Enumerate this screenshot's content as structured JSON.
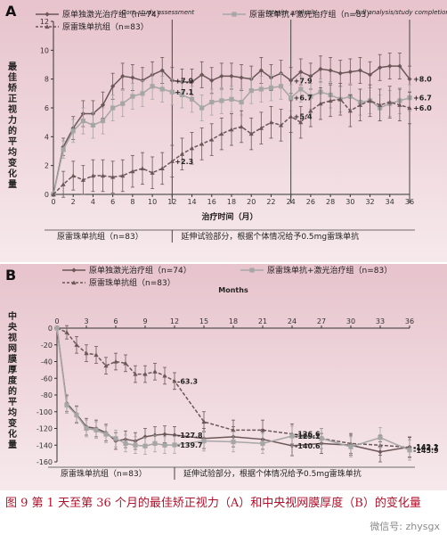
{
  "colors": {
    "background_top": "#e7c3cc",
    "background_bottom": "#f6e9ec",
    "series_laser": "#6b5757",
    "series_ranib_laser": "#a6a6a6",
    "series_ranib": "#6b5757",
    "caption": "#b0122b"
  },
  "caption": "图 9 第 1 天至第 36 个月的最佳矫正视力（A）和中央视网膜厚度（B）的变化量",
  "watermark": "微信号: zhysgx",
  "chart_data": [
    {
      "id": "A",
      "type": "line",
      "panel_label": "A",
      "ylabel": "最佳矫正视力的平均变化量",
      "xlabel": "治疗时间（月）",
      "ylim": [
        0,
        12
      ],
      "xlim": [
        0,
        36
      ],
      "yticks": [
        0,
        2,
        4,
        6,
        8,
        10,
        12
      ],
      "xticks": [
        0,
        2,
        4,
        6,
        8,
        10,
        12,
        14,
        16,
        18,
        20,
        22,
        24,
        26,
        28,
        30,
        32,
        34,
        36
      ],
      "legend": [
        {
          "key": "laser",
          "text": "原单独激光治疗组（n=74）"
        },
        {
          "key": "ranib_laser",
          "text": "原雷珠单抗+激光治疗组（n=83）"
        },
        {
          "key": "ranib",
          "text": "原雷珠单抗组（n=83）"
        }
      ],
      "phase_labels": [
        "原雷珠单抗组（n=83）",
        "延伸试验部分，根据个体情况给予0.5mg雷珠单抗"
      ],
      "divider_x": 12,
      "vlines": [
        {
          "x": 12,
          "label": "Core study assessment"
        },
        {
          "x": 24,
          "label": "Interim analysis"
        },
        {
          "x": 36,
          "label": "Full analysis/study completion"
        }
      ],
      "annotations": [
        {
          "x": 12,
          "y": 7.9,
          "text": "+7.9"
        },
        {
          "x": 12,
          "y": 7.1,
          "text": "+7.1"
        },
        {
          "x": 12,
          "y": 2.3,
          "text": "+2.3"
        },
        {
          "x": 24,
          "y": 7.9,
          "text": "+7.9"
        },
        {
          "x": 24,
          "y": 6.7,
          "text": "+6.7"
        },
        {
          "x": 24,
          "y": 5.4,
          "text": "+5.4"
        },
        {
          "x": 36,
          "y": 8.0,
          "text": "+8.0"
        },
        {
          "x": 36,
          "y": 6.7,
          "text": "+6.7"
        },
        {
          "x": 36,
          "y": 6.0,
          "text": "+6.0"
        }
      ],
      "series": [
        {
          "key": "laser",
          "marker": "diamond",
          "x": [
            0,
            1,
            2,
            3,
            4,
            5,
            6,
            7,
            8,
            9,
            10,
            11,
            12,
            13,
            14,
            15,
            16,
            17,
            18,
            19,
            20,
            21,
            22,
            23,
            24,
            25,
            26,
            27,
            28,
            29,
            30,
            31,
            32,
            33,
            34,
            35,
            36
          ],
          "values": [
            0,
            3.3,
            4.6,
            5.6,
            5.6,
            6.2,
            7.5,
            8.2,
            8.1,
            7.9,
            8.3,
            8.6,
            7.9,
            7.8,
            7.8,
            8.3,
            7.9,
            8.2,
            8.2,
            8.1,
            8.0,
            8.6,
            8.1,
            8.4,
            7.9,
            8.5,
            8.2,
            8.7,
            8.6,
            8.4,
            8.5,
            8.6,
            8.3,
            8.8,
            8.9,
            8.9,
            8.0
          ],
          "err": [
            0,
            0.6,
            0.8,
            0.9,
            0.9,
            0.9,
            0.9,
            0.9,
            0.9,
            0.9,
            0.9,
            0.9,
            0.9,
            0.9,
            0.9,
            0.9,
            0.9,
            0.9,
            0.9,
            0.9,
            0.9,
            0.9,
            0.9,
            0.9,
            0.9,
            0.9,
            0.9,
            0.9,
            0.9,
            0.9,
            0.9,
            0.9,
            0.9,
            0.9,
            0.9,
            0.9,
            0.9
          ]
        },
        {
          "key": "ranib_laser",
          "marker": "square",
          "x": [
            0,
            1,
            2,
            3,
            4,
            5,
            6,
            7,
            8,
            9,
            10,
            11,
            12,
            13,
            14,
            15,
            16,
            17,
            18,
            19,
            20,
            21,
            22,
            23,
            24,
            25,
            26,
            27,
            28,
            29,
            30,
            31,
            32,
            33,
            34,
            35,
            36
          ],
          "values": [
            0,
            3.1,
            4.4,
            5.1,
            4.8,
            5.1,
            6.0,
            6.3,
            6.8,
            7.0,
            7.5,
            7.3,
            7.1,
            6.9,
            6.6,
            6.0,
            6.4,
            6.5,
            6.6,
            6.4,
            7.2,
            7.3,
            7.4,
            7.5,
            6.7,
            7.3,
            6.8,
            7.1,
            6.9,
            6.6,
            6.8,
            6.4,
            6.5,
            6.0,
            6.3,
            6.5,
            6.7
          ],
          "err": [
            0,
            0.6,
            0.8,
            0.9,
            0.9,
            0.9,
            0.9,
            0.9,
            0.9,
            0.9,
            0.9,
            0.9,
            0.9,
            0.9,
            0.9,
            0.9,
            0.9,
            0.9,
            0.9,
            0.9,
            0.9,
            0.9,
            0.9,
            0.9,
            0.9,
            0.9,
            0.9,
            0.9,
            0.9,
            0.9,
            0.9,
            0.9,
            0.9,
            0.9,
            0.9,
            0.9,
            0.9
          ]
        },
        {
          "key": "ranib",
          "marker": "triangle",
          "x": [
            0,
            1,
            2,
            3,
            4,
            5,
            6,
            7,
            8,
            9,
            10,
            11,
            12,
            13,
            14,
            15,
            16,
            17,
            18,
            19,
            20,
            21,
            22,
            23,
            24,
            25,
            26,
            27,
            28,
            29,
            30,
            31,
            32,
            33,
            34,
            35,
            36
          ],
          "values": [
            0,
            0.7,
            1.3,
            1.0,
            1.3,
            1.3,
            1.2,
            1.3,
            1.6,
            1.8,
            1.5,
            1.8,
            2.3,
            2.8,
            3.2,
            3.5,
            3.8,
            4.2,
            4.5,
            4.7,
            4.2,
            4.6,
            5.0,
            4.8,
            5.4,
            5.0,
            5.8,
            6.3,
            6.5,
            6.6,
            5.8,
            6.2,
            6.5,
            6.2,
            6.4,
            6.2,
            6.0
          ],
          "err": [
            0,
            0.9,
            1.0,
            1.0,
            1.1,
            1.1,
            1.1,
            1.1,
            1.1,
            1.1,
            1.1,
            1.1,
            1.1,
            1.1,
            1.1,
            1.1,
            1.1,
            1.1,
            1.1,
            1.1,
            1.1,
            1.1,
            1.1,
            1.1,
            1.1,
            1.1,
            1.1,
            1.1,
            1.1,
            1.1,
            1.1,
            1.1,
            1.1,
            1.1,
            1.1,
            1.1,
            1.1
          ]
        }
      ]
    },
    {
      "id": "B",
      "type": "line",
      "panel_label": "B",
      "ylabel": "中央视网膜厚度的平均变化量",
      "xlabel": "Months",
      "xaxis_position": "top",
      "ylim": [
        -160,
        0
      ],
      "xlim": [
        0,
        36
      ],
      "yticks": [
        0,
        -20,
        -40,
        -60,
        -80,
        -100,
        -120,
        -140,
        -160
      ],
      "xticks": [
        0,
        3,
        6,
        9,
        12,
        15,
        18,
        21,
        24,
        27,
        30,
        33,
        36
      ],
      "legend": [
        {
          "key": "laser",
          "text": "原单独激光治疗组（n=74）"
        },
        {
          "key": "ranib_laser",
          "text": "原雷珠单抗+激光治疗组（n=83）"
        },
        {
          "key": "ranib",
          "text": "原雷珠单抗组（n=83）"
        }
      ],
      "phase_labels": [
        "原雷珠单抗组（n=83）",
        "延伸试验部分，根据个体情况给予0.5mg雷珠单抗"
      ],
      "divider_x": 12,
      "annotations": [
        {
          "x": 12,
          "y": -63.3,
          "text": "-63.3"
        },
        {
          "x": 12,
          "y": -127.8,
          "text": "-127.8"
        },
        {
          "x": 12,
          "y": -139.7,
          "text": "-139.7"
        },
        {
          "x": 24,
          "y": -126.6,
          "text": "-126.6"
        },
        {
          "x": 24,
          "y": -129.1,
          "text": "-129.1"
        },
        {
          "x": 24,
          "y": -140.6,
          "text": "-140.6"
        },
        {
          "x": 36,
          "y": -142.7,
          "text": "-142.7"
        },
        {
          "x": 36,
          "y": -142.1,
          "text": "-142.1"
        },
        {
          "x": 36,
          "y": -145.9,
          "text": "-145.9"
        }
      ],
      "series": [
        {
          "key": "ranib",
          "marker": "triangle",
          "x": [
            0,
            1,
            2,
            3,
            4,
            5,
            6,
            7,
            8,
            9,
            10,
            11,
            12,
            15,
            18,
            21,
            24,
            27,
            30,
            33,
            36
          ],
          "values": [
            0,
            -5,
            -20,
            -30,
            -32,
            -45,
            -40,
            -42,
            -55,
            -55,
            -52,
            -57,
            -63.3,
            -112,
            -122,
            -122,
            -126.6,
            -132,
            -138,
            -140,
            -142.7
          ],
          "err": [
            0,
            8,
            10,
            10,
            10,
            10,
            10,
            10,
            10,
            10,
            10,
            10,
            10,
            12,
            12,
            12,
            12,
            12,
            12,
            12,
            12
          ]
        },
        {
          "key": "laser",
          "marker": "diamond",
          "x": [
            0,
            1,
            2,
            3,
            4,
            5,
            6,
            7,
            8,
            9,
            10,
            11,
            12,
            15,
            18,
            21,
            24,
            27,
            30,
            33,
            36
          ],
          "values": [
            0,
            -90,
            -103,
            -118,
            -120,
            -125,
            -135,
            -133,
            -135,
            -130,
            -128,
            -127,
            -127.8,
            -132,
            -130,
            -133,
            -140.6,
            -138,
            -140,
            -148,
            -142.1
          ],
          "err": [
            0,
            10,
            10,
            10,
            10,
            10,
            10,
            10,
            10,
            10,
            10,
            10,
            10,
            12,
            12,
            12,
            12,
            12,
            12,
            12,
            12
          ]
        },
        {
          "key": "ranib_laser",
          "marker": "square",
          "x": [
            0,
            1,
            2,
            3,
            4,
            5,
            6,
            7,
            8,
            9,
            10,
            11,
            12,
            15,
            18,
            21,
            24,
            27,
            30,
            33,
            36
          ],
          "values": [
            0,
            -92,
            -104,
            -120,
            -122,
            -127,
            -132,
            -138,
            -140,
            -141,
            -138,
            -140,
            -139.7,
            -135,
            -136,
            -138,
            -129.1,
            -132,
            -142,
            -131,
            -145.9
          ],
          "err": [
            0,
            10,
            10,
            10,
            10,
            10,
            10,
            10,
            10,
            10,
            10,
            10,
            10,
            12,
            12,
            12,
            12,
            12,
            12,
            12,
            12
          ]
        }
      ]
    }
  ]
}
